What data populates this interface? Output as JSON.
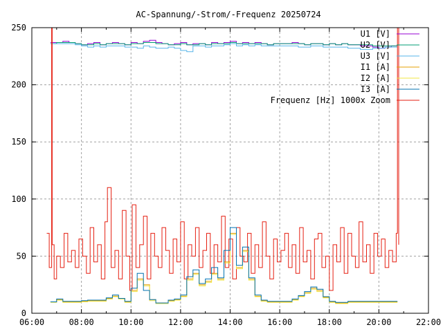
{
  "chart_data": {
    "type": "line",
    "title": "AC-Spannung/-Strom/-Frequenz 20250724",
    "xlabel": "",
    "ylabel": "",
    "xlim": [
      6,
      22
    ],
    "ylim": [
      0,
      250
    ],
    "grid": true,
    "legend_placement": "top-right",
    "xticks": [
      6,
      8,
      10,
      12,
      14,
      16,
      18,
      20,
      22
    ],
    "xtick_labels": [
      "06:00",
      "08:00",
      "10:00",
      "12:00",
      "14:00",
      "16:00",
      "18:00",
      "20:00",
      "22:00"
    ],
    "yticks": [
      0,
      50,
      100,
      150,
      200,
      250
    ],
    "ytick_labels": [
      "0",
      "50",
      "100",
      "150",
      "200",
      "250"
    ],
    "x": [
      6.75,
      7.0,
      7.25,
      7.5,
      7.75,
      8.0,
      8.25,
      8.5,
      8.75,
      9.0,
      9.25,
      9.5,
      9.75,
      10.0,
      10.25,
      10.5,
      10.75,
      11.0,
      11.25,
      11.5,
      11.75,
      12.0,
      12.25,
      12.5,
      12.75,
      13.0,
      13.25,
      13.5,
      13.75,
      14.0,
      14.25,
      14.5,
      14.75,
      15.0,
      15.25,
      15.5,
      15.75,
      16.0,
      16.25,
      16.5,
      16.75,
      17.0,
      17.25,
      17.5,
      17.75,
      18.0,
      18.25,
      18.5,
      18.75,
      19.0,
      19.25,
      19.5,
      19.75,
      20.0,
      20.25,
      20.5,
      20.75
    ],
    "series": [
      {
        "name": "U1 [V]",
        "color": "#9400d3",
        "values": [
          237,
          237,
          238,
          237,
          236,
          235,
          236,
          237,
          235,
          236,
          237,
          236,
          235,
          237,
          236,
          238,
          239,
          237,
          236,
          235,
          236,
          237,
          235,
          236,
          236,
          235,
          237,
          236,
          237,
          238,
          236,
          237,
          236,
          237,
          236,
          235,
          236,
          236,
          236,
          237,
          236,
          235,
          236,
          236,
          235,
          236,
          235,
          236,
          235,
          235,
          234,
          234,
          233,
          232,
          233,
          234,
          234
        ]
      },
      {
        "name": "U2 [V]",
        "color": "#009e73",
        "values": [
          236,
          237,
          237,
          237,
          236,
          235,
          235,
          236,
          235,
          236,
          236,
          236,
          235,
          236,
          236,
          237,
          237,
          236,
          236,
          235,
          235,
          236,
          235,
          235,
          236,
          235,
          236,
          236,
          236,
          237,
          236,
          236,
          236,
          236,
          236,
          235,
          236,
          236,
          236,
          236,
          236,
          235,
          236,
          236,
          235,
          236,
          235,
          236,
          235,
          235,
          235,
          235,
          234,
          234,
          234,
          234,
          234
        ]
      },
      {
        "name": "U3 [V]",
        "color": "#56b4e9",
        "values": [
          236,
          236,
          236,
          236,
          235,
          234,
          233,
          234,
          233,
          234,
          234,
          234,
          233,
          233,
          232,
          234,
          233,
          232,
          232,
          233,
          232,
          230,
          229,
          234,
          234,
          233,
          234,
          234,
          235,
          236,
          234,
          235,
          234,
          235,
          234,
          234,
          234,
          234,
          234,
          234,
          233,
          233,
          234,
          234,
          233,
          233,
          233,
          233,
          232,
          232,
          231,
          231,
          232,
          232,
          233,
          233,
          233
        ]
      },
      {
        "name": "I1 [A]",
        "color": "#e69f00",
        "values": [
          10,
          12,
          10,
          10,
          10,
          10.5,
          11,
          11,
          11,
          13,
          15,
          13,
          10,
          20,
          30,
          25,
          12,
          9,
          9,
          11,
          12,
          15,
          30,
          35,
          25,
          28,
          35,
          30,
          45,
          70,
          40,
          55,
          30,
          15,
          11,
          10,
          10,
          10,
          10,
          12,
          15,
          18,
          22,
          20,
          14,
          10,
          9,
          9,
          10,
          10,
          10,
          10,
          10,
          10,
          10,
          10,
          10
        ]
      },
      {
        "name": "I2 [A]",
        "color": "#f0e442",
        "values": [
          9.5,
          11.5,
          9.5,
          9.5,
          9.5,
          10,
          10.5,
          10.5,
          10.5,
          12.5,
          14.5,
          12.5,
          9.5,
          19,
          29,
          24,
          11,
          8.5,
          8.5,
          10.5,
          11.5,
          14.5,
          29,
          34,
          24,
          27,
          34,
          29,
          44,
          69,
          39,
          54,
          29,
          14.5,
          10.5,
          9.5,
          9.5,
          9.5,
          9.5,
          11.5,
          14.5,
          17.5,
          21,
          19,
          13.5,
          9.5,
          8.5,
          8.5,
          9.5,
          9.5,
          9.5,
          9.5,
          9.5,
          9.5,
          9.5,
          9.5,
          9.5
        ]
      },
      {
        "name": "I3 [A]",
        "color": "#0072b2",
        "values": [
          10,
          12.5,
          10.5,
          10.5,
          10.5,
          11,
          11.5,
          11.5,
          11.5,
          13.5,
          16,
          13,
          10.5,
          22,
          35,
          20,
          12,
          9,
          9,
          11.5,
          12.5,
          16,
          32,
          38,
          26,
          30,
          40,
          31,
          55,
          75,
          42,
          58,
          31,
          16,
          11.5,
          10.5,
          10.5,
          10.5,
          10.5,
          12.5,
          15.5,
          19,
          23,
          21,
          14.5,
          10.5,
          9.5,
          9.5,
          10.5,
          10.5,
          10.5,
          10.5,
          10.5,
          10.5,
          10.5,
          10.5,
          10.5
        ]
      }
    ],
    "frequency": {
      "name": "Frequenz [Hz] 1000x Zoom",
      "color": "#e51e10",
      "x": [
        6.6,
        6.7,
        6.8,
        6.82,
        6.9,
        7.0,
        7.15,
        7.3,
        7.45,
        7.6,
        7.75,
        7.9,
        8.05,
        8.2,
        8.35,
        8.5,
        8.65,
        8.8,
        8.95,
        9.05,
        9.2,
        9.35,
        9.5,
        9.65,
        9.8,
        9.95,
        10.05,
        10.2,
        10.35,
        10.5,
        10.65,
        10.8,
        10.95,
        11.1,
        11.25,
        11.4,
        11.55,
        11.7,
        11.85,
        12.0,
        12.15,
        12.3,
        12.45,
        12.6,
        12.75,
        12.9,
        13.05,
        13.2,
        13.35,
        13.5,
        13.65,
        13.8,
        13.95,
        14.1,
        14.25,
        14.4,
        14.55,
        14.7,
        14.85,
        15.0,
        15.15,
        15.3,
        15.45,
        15.6,
        15.75,
        15.9,
        16.05,
        16.2,
        16.35,
        16.5,
        16.65,
        16.8,
        16.95,
        17.1,
        17.25,
        17.4,
        17.55,
        17.7,
        17.85,
        18.0,
        18.15,
        18.3,
        18.45,
        18.6,
        18.75,
        18.9,
        19.05,
        19.2,
        19.35,
        19.5,
        19.65,
        19.8,
        19.95,
        20.1,
        20.25,
        20.4,
        20.55,
        20.7,
        20.75,
        20.8
      ],
      "values": [
        70,
        40,
        250,
        60,
        30,
        50,
        40,
        70,
        45,
        55,
        40,
        65,
        50,
        35,
        75,
        45,
        60,
        30,
        80,
        110,
        40,
        55,
        30,
        90,
        50,
        20,
        95,
        40,
        60,
        85,
        30,
        70,
        50,
        40,
        75,
        55,
        35,
        65,
        45,
        80,
        30,
        60,
        50,
        75,
        40,
        55,
        70,
        35,
        60,
        45,
        85,
        40,
        65,
        30,
        75,
        50,
        45,
        70,
        35,
        60,
        40,
        80,
        50,
        30,
        65,
        45,
        55,
        70,
        40,
        60,
        35,
        75,
        45,
        55,
        30,
        65,
        70,
        40,
        50,
        20,
        60,
        45,
        75,
        35,
        70,
        50,
        40,
        80,
        45,
        60,
        35,
        70,
        50,
        65,
        40,
        55,
        45,
        70,
        250,
        60
      ]
    }
  }
}
